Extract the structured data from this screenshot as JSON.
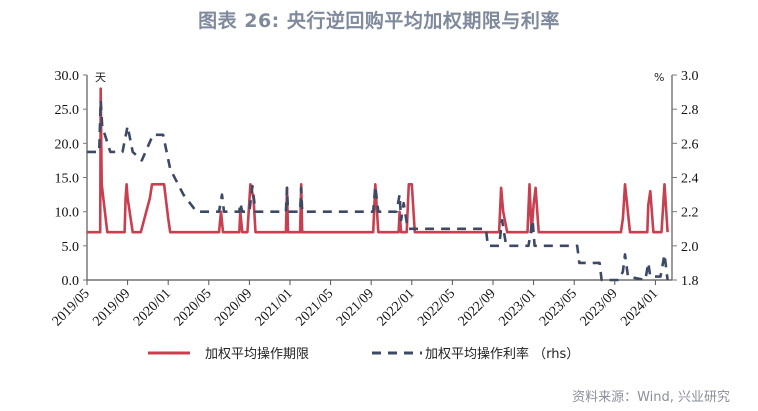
{
  "title": "图表 26: 央行逆回购平均加权期限与利率",
  "source": "资料来源：Wind, 兴业研究",
  "colors": {
    "tenor": "#c8404f",
    "rate": "#3d4a66",
    "axis": "#7a7a7a",
    "title": "#7f8a9c"
  },
  "chart_data": {
    "type": "line",
    "title": "图表 26: 央行逆回购平均加权期限与利率",
    "xlabel": "",
    "ylabel_left": "天",
    "ylabel_right": "%",
    "ylim_left": [
      0,
      30
    ],
    "ylim_right": [
      1.8,
      3.0
    ],
    "yticks_left": [
      "0.0",
      "5.0",
      "10.0",
      "15.0",
      "20.0",
      "25.0",
      "30.0"
    ],
    "yticks_right": [
      "1.8",
      "2.0",
      "2.2",
      "2.4",
      "2.6",
      "2.8",
      "3.0"
    ],
    "xticks": [
      "2019/05",
      "2019/09",
      "2020/01",
      "2020/05",
      "2020/09",
      "2021/01",
      "2021/05",
      "2021/09",
      "2022/01",
      "2022/05",
      "2022/09",
      "2023/01",
      "2023/05",
      "2023/09",
      "2024/01"
    ],
    "legend": [
      "加权平均操作期限",
      "加权平均操作利率 （rhs）"
    ],
    "legend_position": "bottom",
    "grid": false,
    "series": [
      {
        "name": "加权平均操作期限",
        "axis": "left",
        "style": "solid",
        "points": [
          [
            0.0,
            7
          ],
          [
            1.3,
            7
          ],
          [
            1.35,
            28
          ],
          [
            1.45,
            14
          ],
          [
            2.0,
            7
          ],
          [
            3.7,
            7
          ],
          [
            3.8,
            12
          ],
          [
            3.9,
            14
          ],
          [
            4.0,
            12
          ],
          [
            4.5,
            7
          ],
          [
            5.3,
            7
          ],
          [
            6.2,
            12
          ],
          [
            6.4,
            14
          ],
          [
            7.6,
            14
          ],
          [
            8.0,
            9
          ],
          [
            8.2,
            7
          ],
          [
            13.0,
            7
          ],
          [
            13.2,
            10
          ],
          [
            13.4,
            7
          ],
          [
            15.0,
            7
          ],
          [
            15.1,
            10
          ],
          [
            15.3,
            7
          ],
          [
            15.8,
            7
          ],
          [
            16.1,
            14
          ],
          [
            16.4,
            12
          ],
          [
            16.6,
            7
          ],
          [
            19.6,
            7
          ],
          [
            19.7,
            13.5
          ],
          [
            19.8,
            7
          ],
          [
            21.0,
            7
          ],
          [
            21.1,
            14
          ],
          [
            21.2,
            7
          ],
          [
            28.2,
            7
          ],
          [
            28.4,
            14
          ],
          [
            28.7,
            7
          ],
          [
            30.7,
            7
          ],
          [
            30.8,
            10
          ],
          [
            30.95,
            7
          ],
          [
            31.5,
            7
          ],
          [
            31.7,
            14
          ],
          [
            32.0,
            14
          ],
          [
            32.3,
            7
          ],
          [
            40.6,
            7
          ],
          [
            40.8,
            13.5
          ],
          [
            41.0,
            10
          ],
          [
            41.4,
            7
          ],
          [
            43.4,
            7
          ],
          [
            43.6,
            14
          ],
          [
            43.8,
            7
          ],
          [
            44.0,
            11
          ],
          [
            44.2,
            13.5
          ],
          [
            44.5,
            7
          ],
          [
            52.6,
            7
          ],
          [
            52.8,
            9
          ],
          [
            53.0,
            14
          ],
          [
            53.5,
            7
          ],
          [
            55.2,
            7
          ],
          [
            55.3,
            11
          ],
          [
            55.5,
            13
          ],
          [
            55.8,
            7
          ],
          [
            56.6,
            7
          ],
          [
            56.9,
            14
          ],
          [
            57.2,
            7
          ]
        ]
      },
      {
        "name": "加权平均操作利率 （rhs）",
        "axis": "right",
        "style": "dashed",
        "points": [
          [
            0.0,
            2.55
          ],
          [
            1.2,
            2.55
          ],
          [
            1.35,
            2.85
          ],
          [
            1.5,
            2.7
          ],
          [
            2.3,
            2.55
          ],
          [
            3.5,
            2.55
          ],
          [
            4.0,
            2.7
          ],
          [
            4.5,
            2.55
          ],
          [
            5.4,
            2.5
          ],
          [
            6.5,
            2.65
          ],
          [
            7.5,
            2.65
          ],
          [
            8.2,
            2.45
          ],
          [
            9.5,
            2.3
          ],
          [
            10.8,
            2.2
          ],
          [
            13.0,
            2.2
          ],
          [
            13.3,
            2.3
          ],
          [
            13.5,
            2.2
          ],
          [
            15.0,
            2.2
          ],
          [
            15.1,
            2.25
          ],
          [
            15.3,
            2.2
          ],
          [
            16.0,
            2.2
          ],
          [
            16.3,
            2.35
          ],
          [
            16.6,
            2.2
          ],
          [
            19.6,
            2.2
          ],
          [
            19.7,
            2.34
          ],
          [
            19.8,
            2.2
          ],
          [
            21.0,
            2.2
          ],
          [
            21.1,
            2.34
          ],
          [
            21.2,
            2.2
          ],
          [
            28.2,
            2.2
          ],
          [
            28.4,
            2.35
          ],
          [
            28.7,
            2.2
          ],
          [
            30.5,
            2.2
          ],
          [
            30.8,
            2.3
          ],
          [
            30.95,
            2.15
          ],
          [
            31.2,
            2.25
          ],
          [
            31.6,
            2.1
          ],
          [
            32.5,
            2.1
          ],
          [
            39.3,
            2.1
          ],
          [
            39.5,
            2.0
          ],
          [
            40.6,
            2.0
          ],
          [
            40.9,
            2.15
          ],
          [
            41.3,
            2.0
          ],
          [
            43.0,
            2.0
          ],
          [
            43.5,
            2.0
          ],
          [
            43.9,
            2.15
          ],
          [
            44.1,
            2.0
          ],
          [
            48.3,
            2.0
          ],
          [
            48.5,
            1.9
          ],
          [
            50.5,
            1.9
          ],
          [
            50.7,
            1.8
          ],
          [
            52.4,
            1.8
          ],
          [
            52.8,
            1.85
          ],
          [
            53.0,
            1.95
          ],
          [
            53.3,
            1.82
          ],
          [
            55.0,
            1.8
          ],
          [
            55.3,
            1.9
          ],
          [
            55.5,
            1.82
          ],
          [
            56.5,
            1.82
          ],
          [
            56.9,
            1.95
          ],
          [
            57.2,
            1.8
          ]
        ]
      }
    ]
  }
}
